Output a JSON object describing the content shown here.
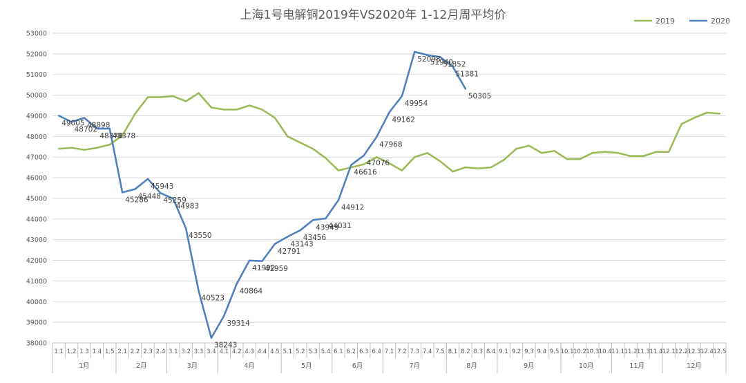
{
  "chart_data": {
    "type": "line",
    "title": "上海1号电解铜2019年VS2020年  1-12月周平均价",
    "ylim": [
      38000,
      53000
    ],
    "y_ticks": [
      38000,
      39000,
      40000,
      41000,
      42000,
      43000,
      44000,
      45000,
      46000,
      47000,
      48000,
      49000,
      50000,
      51000,
      52000,
      53000
    ],
    "grid": "horizontal",
    "legend": "top-right",
    "categories": [
      "1.1",
      "1.2",
      "1.3",
      "1.4",
      "1.5",
      "2.1",
      "2.2",
      "2.3",
      "2.4",
      "3.1",
      "3.2",
      "3.3",
      "3.4",
      "4.1",
      "4.2",
      "4.3",
      "4.4",
      "4.5",
      "5.1",
      "5.2",
      "5.3",
      "5.4",
      "6.1",
      "6.2",
      "6.3",
      "6.4",
      "7.1",
      "7.2",
      "7.3",
      "7.4",
      "7.5",
      "8.1",
      "8.2",
      "8.3",
      "8.4",
      "9.1",
      "9.2",
      "9.3",
      "9.4",
      "9.5",
      "10.1",
      "10.2",
      "10.3",
      "10.4",
      "11.1",
      "11.2",
      "11.3",
      "11.4",
      "12.1",
      "12.2",
      "12.3",
      "12.4",
      "12.5"
    ],
    "groups": [
      {
        "label": "1月",
        "count": 5
      },
      {
        "label": "2月",
        "count": 4
      },
      {
        "label": "3月",
        "count": 4
      },
      {
        "label": "4月",
        "count": 5
      },
      {
        "label": "5月",
        "count": 4
      },
      {
        "label": "6月",
        "count": 4
      },
      {
        "label": "7月",
        "count": 5
      },
      {
        "label": "8月",
        "count": 4
      },
      {
        "label": "9月",
        "count": 5
      },
      {
        "label": "10月",
        "count": 4
      },
      {
        "label": "11月",
        "count": 4
      },
      {
        "label": "12月",
        "count": 5
      }
    ],
    "series": [
      {
        "name": "2019",
        "color": "#9BBB59",
        "values": [
          47400,
          47450,
          47350,
          47450,
          47600,
          48050,
          49100,
          49900,
          49900,
          49950,
          49700,
          50100,
          49400,
          49300,
          49300,
          49500,
          49300,
          48900,
          48000,
          47700,
          47400,
          46950,
          46350,
          46500,
          46650,
          47000,
          46700,
          46350,
          47000,
          47200,
          46800,
          46300,
          46500,
          46450,
          46500,
          46850,
          47400,
          47550,
          47200,
          47300,
          46900,
          46900,
          47200,
          47250,
          47200,
          47050,
          47050,
          47250,
          47250,
          48600,
          48900,
          49150,
          49100
        ],
        "show_labels": false
      },
      {
        "name": "2020",
        "color": "#4F81BD",
        "values": [
          49005,
          48702,
          48898,
          48378,
          48378,
          45286,
          45448,
          45943,
          45259,
          44983,
          43550,
          40523,
          38243,
          39314,
          40864,
          41992,
          41959,
          42791,
          43143,
          43456,
          43949,
          44031,
          44912,
          46616,
          47076,
          47968,
          49162,
          49954,
          52098,
          51940,
          51852,
          51381,
          50305,
          null,
          null,
          null,
          null,
          null,
          null,
          null,
          null,
          null,
          null,
          null,
          null,
          null,
          null,
          null,
          null,
          null,
          null,
          null,
          null
        ],
        "show_labels": true
      }
    ]
  }
}
